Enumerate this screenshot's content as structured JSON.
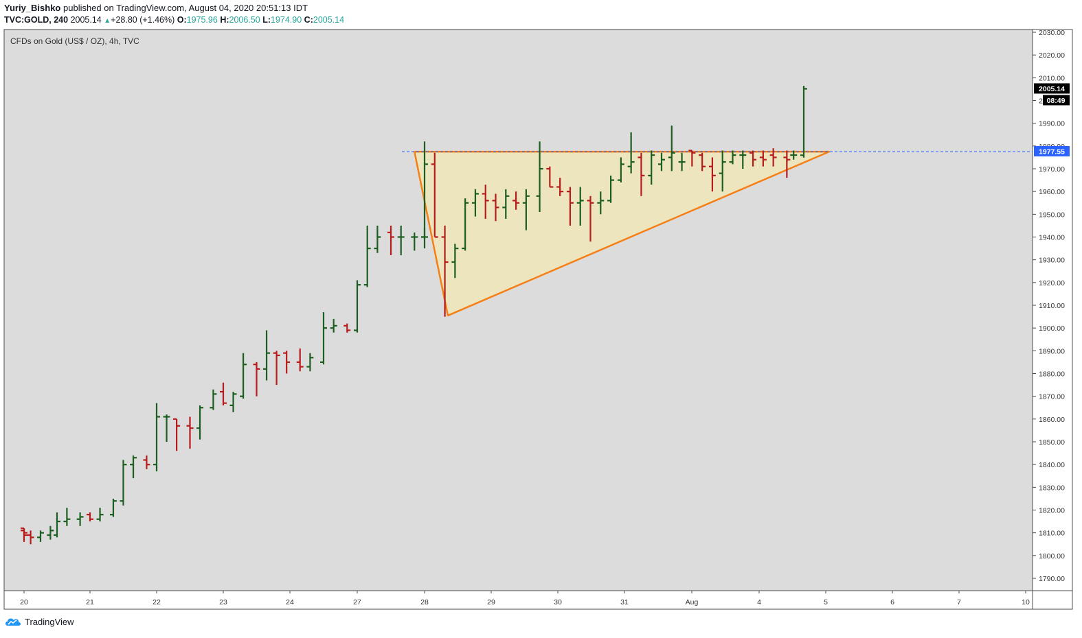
{
  "header": {
    "author": "Yuriy_Bishko",
    "published_text": "published on TradingView.com, August 04, 2020 20:51:13 IDT",
    "symbol": "TVC:GOLD, 240",
    "last": "2005.14",
    "change": "+28.80 (+1.46%)",
    "o_label": "O:",
    "o_val": "1975.96",
    "h_label": "H:",
    "h_val": "2006.50",
    "l_label": "L:",
    "l_val": "1974.90",
    "c_label": "C:",
    "c_val": "2005.14"
  },
  "footer": {
    "brand": "TradingView"
  },
  "chart_data": {
    "type": "ohlc",
    "title": "CFDs on Gold (US$ / OZ), 4h, TVC",
    "ylim": [
      1785,
      2032
    ],
    "y_ticks": [
      1790,
      1800,
      1810,
      1820,
      1830,
      1840,
      1850,
      1860,
      1870,
      1880,
      1890,
      1900,
      1910,
      1920,
      1930,
      1940,
      1950,
      1960,
      1970,
      1980,
      1990,
      2000,
      2010,
      2020,
      2030
    ],
    "x_ticks": [
      "20",
      "21",
      "22",
      "23",
      "24",
      "27",
      "28",
      "29",
      "30",
      "31",
      "Aug",
      "4",
      "5",
      "6",
      "7",
      "10"
    ],
    "price_labels": {
      "last": "2005.14",
      "countdown": "08:49",
      "line": "1977.55"
    },
    "horizontal_line": 1977.55,
    "colors": {
      "up": "#1b5e20",
      "down": "#b71c1c",
      "line": "#2962ff",
      "pattern": "#f57f17",
      "pattern_fill": "#f0e6b8",
      "last_bg": "#000000",
      "line_bg": "#2962ff"
    },
    "triangle": [
      [
        27.85,
        1977.5
      ],
      [
        28.35,
        1905.5
      ],
      [
        5.05,
        1977.5
      ]
    ],
    "bars": [
      {
        "x": 19.75,
        "o": 1812,
        "h": 1812,
        "l": 1808,
        "c": 1810
      },
      {
        "x": 19.9,
        "o": 1811,
        "h": 1812,
        "l": 1806,
        "c": 1809
      },
      {
        "x": 20.1,
        "o": 1809,
        "h": 1811,
        "l": 1805,
        "c": 1808
      },
      {
        "x": 20.25,
        "o": 1808,
        "h": 1811,
        "l": 1806,
        "c": 1810
      },
      {
        "x": 20.4,
        "o": 1809,
        "h": 1813,
        "l": 1807,
        "c": 1811
      },
      {
        "x": 20.5,
        "o": 1809,
        "h": 1819,
        "l": 1808,
        "c": 1815
      },
      {
        "x": 20.65,
        "o": 1815,
        "h": 1821,
        "l": 1813,
        "c": 1816
      },
      {
        "x": 20.85,
        "o": 1816,
        "h": 1819,
        "l": 1813,
        "c": 1817
      },
      {
        "x": 21.0,
        "o": 1818,
        "h": 1819,
        "l": 1815,
        "c": 1816
      },
      {
        "x": 21.15,
        "o": 1816,
        "h": 1821,
        "l": 1815,
        "c": 1818
      },
      {
        "x": 21.35,
        "o": 1818,
        "h": 1825,
        "l": 1817,
        "c": 1824
      },
      {
        "x": 21.5,
        "o": 1824,
        "h": 1842,
        "l": 1822,
        "c": 1840
      },
      {
        "x": 21.65,
        "o": 1840,
        "h": 1844,
        "l": 1834,
        "c": 1843
      },
      {
        "x": 21.85,
        "o": 1842,
        "h": 1844,
        "l": 1838,
        "c": 1840
      },
      {
        "x": 22.0,
        "o": 1840,
        "h": 1867,
        "l": 1837,
        "c": 1861
      },
      {
        "x": 22.15,
        "o": 1861,
        "h": 1862,
        "l": 1850,
        "c": 1861
      },
      {
        "x": 22.3,
        "o": 1860,
        "h": 1860,
        "l": 1846,
        "c": 1857
      },
      {
        "x": 22.5,
        "o": 1857,
        "h": 1861,
        "l": 1847,
        "c": 1856
      },
      {
        "x": 22.65,
        "o": 1856,
        "h": 1866,
        "l": 1851,
        "c": 1865
      },
      {
        "x": 22.85,
        "o": 1865,
        "h": 1873,
        "l": 1864,
        "c": 1871
      },
      {
        "x": 23.0,
        "o": 1872,
        "h": 1876,
        "l": 1866,
        "c": 1867
      },
      {
        "x": 23.15,
        "o": 1866,
        "h": 1872,
        "l": 1863,
        "c": 1871
      },
      {
        "x": 23.3,
        "o": 1870,
        "h": 1889,
        "l": 1869,
        "c": 1884
      },
      {
        "x": 23.5,
        "o": 1884,
        "h": 1885,
        "l": 1870,
        "c": 1882
      },
      {
        "x": 23.65,
        "o": 1882,
        "h": 1899,
        "l": 1877,
        "c": 1889
      },
      {
        "x": 23.8,
        "o": 1889,
        "h": 1890,
        "l": 1875,
        "c": 1888
      },
      {
        "x": 23.95,
        "o": 1889,
        "h": 1890,
        "l": 1880,
        "c": 1885
      },
      {
        "x": 24.15,
        "o": 1885,
        "h": 1891,
        "l": 1881,
        "c": 1883
      },
      {
        "x": 24.3,
        "o": 1883,
        "h": 1889,
        "l": 1881,
        "c": 1887
      },
      {
        "x": 24.5,
        "o": 1885,
        "h": 1907,
        "l": 1884,
        "c": 1900
      },
      {
        "x": 24.65,
        "o": 1900,
        "h": 1904,
        "l": 1898,
        "c": 1901
      },
      {
        "x": 24.85,
        "o": 1901,
        "h": 1902,
        "l": 1898,
        "c": 1899
      },
      {
        "x": 25.0,
        "o": 1899,
        "h": 1921,
        "l": 1898,
        "c": 1919
      },
      {
        "x": 25.15,
        "o": 1919,
        "h": 1945,
        "l": 1918,
        "c": 1935
      },
      {
        "x": 25.3,
        "o": 1935,
        "h": 1945,
        "l": 1933,
        "c": 1940
      },
      {
        "x": 25.5,
        "o": 1942,
        "h": 1945,
        "l": 1932,
        "c": 1940
      },
      {
        "x": 25.65,
        "o": 1940,
        "h": 1945,
        "l": 1932,
        "c": 1940
      },
      {
        "x": 25.85,
        "o": 1940,
        "h": 1942,
        "l": 1934,
        "c": 1940
      },
      {
        "x": 26.0,
        "o": 1940,
        "h": 1944,
        "l": 1935,
        "c": 1940
      },
      {
        "x": 26.1,
        "o": 1940,
        "h": 1982,
        "l": 1939,
        "c": 1972
      },
      {
        "x": 26.25,
        "o": 1972,
        "h": 1977,
        "l": 1940,
        "c": 1940
      },
      {
        "x": 26.4,
        "o": 1940,
        "h": 1945,
        "l": 1905,
        "c": 1929
      },
      {
        "x": 26.55,
        "o": 1929,
        "h": 1937,
        "l": 1922,
        "c": 1935
      },
      {
        "x": 26.7,
        "o": 1935,
        "h": 1957,
        "l": 1934,
        "c": 1955
      },
      {
        "x": 26.85,
        "o": 1955,
        "h": 1961,
        "l": 1949,
        "c": 1959
      },
      {
        "x": 27.0,
        "o": 1959,
        "h": 1963,
        "l": 1948,
        "c": 1956
      },
      {
        "x": 27.15,
        "o": 1956,
        "h": 1959,
        "l": 1947,
        "c": 1953
      },
      {
        "x": 27.3,
        "o": 1953,
        "h": 1961,
        "l": 1948,
        "c": 1958
      },
      {
        "x": 27.45,
        "o": 1956,
        "h": 1960,
        "l": 1952,
        "c": 1955
      },
      {
        "x": 27.6,
        "o": 1955,
        "h": 1961,
        "l": 1943,
        "c": 1958
      },
      {
        "x": 27.8,
        "o": 1958,
        "h": 1982,
        "l": 1951,
        "c": 1970
      },
      {
        "x": 27.95,
        "o": 1970,
        "h": 1971,
        "l": 1962,
        "c": 1962
      },
      {
        "x": 28.1,
        "o": 1962,
        "h": 1966,
        "l": 1958,
        "c": 1960
      },
      {
        "x": 28.25,
        "o": 1960,
        "h": 1962,
        "l": 1945,
        "c": 1955
      },
      {
        "x": 28.4,
        "o": 1955,
        "h": 1962,
        "l": 1945,
        "c": 1956
      },
      {
        "x": 28.55,
        "o": 1956,
        "h": 1958,
        "l": 1938,
        "c": 1955
      },
      {
        "x": 28.7,
        "o": 1955,
        "h": 1960,
        "l": 1950,
        "c": 1956
      },
      {
        "x": 28.85,
        "o": 1956,
        "h": 1967,
        "l": 1955,
        "c": 1965
      },
      {
        "x": 29.0,
        "o": 1965,
        "h": 1975,
        "l": 1964,
        "c": 1972
      },
      {
        "x": 29.15,
        "o": 1971,
        "h": 1986,
        "l": 1968,
        "c": 1973
      },
      {
        "x": 29.3,
        "o": 1975,
        "h": 1977,
        "l": 1958,
        "c": 1967
      },
      {
        "x": 29.45,
        "o": 1967,
        "h": 1978,
        "l": 1963,
        "c": 1976
      },
      {
        "x": 29.6,
        "o": 1972,
        "h": 1977,
        "l": 1969,
        "c": 1974
      },
      {
        "x": 29.75,
        "o": 1975,
        "h": 1989,
        "l": 1969,
        "c": 1977
      },
      {
        "x": 29.9,
        "o": 1973,
        "h": 1977,
        "l": 1969,
        "c": 1973
      },
      {
        "x": 30.05,
        "o": 1978,
        "h": 1978,
        "l": 1971,
        "c": 1977
      },
      {
        "x": 30.2,
        "o": 1976,
        "h": 1977,
        "l": 1969,
        "c": 1971
      },
      {
        "x": 30.35,
        "o": 1971,
        "h": 1975,
        "l": 1960,
        "c": 1967
      },
      {
        "x": 30.5,
        "o": 1968,
        "h": 1978,
        "l": 1960,
        "c": 1973
      },
      {
        "x": 30.65,
        "o": 1973,
        "h": 1978,
        "l": 1972,
        "c": 1976
      },
      {
        "x": 30.8,
        "o": 1976,
        "h": 1978,
        "l": 1970,
        "c": 1976
      },
      {
        "x": 30.95,
        "o": 1977,
        "h": 1978,
        "l": 1971,
        "c": 1974
      },
      {
        "x": 31.1,
        "o": 1975,
        "h": 1978,
        "l": 1971,
        "c": 1974
      },
      {
        "x": 31.25,
        "o": 1976,
        "h": 1979,
        "l": 1971,
        "c": 1975
      },
      {
        "x": 31.45,
        "o": 1975,
        "h": 1978,
        "l": 1966,
        "c": 1974
      },
      {
        "x": 31.55,
        "o": 1976,
        "h": 1978,
        "l": 1974,
        "c": 1976
      },
      {
        "x": 31.7,
        "o": 1975.96,
        "h": 2006.5,
        "l": 1974.9,
        "c": 2005.14
      }
    ]
  }
}
